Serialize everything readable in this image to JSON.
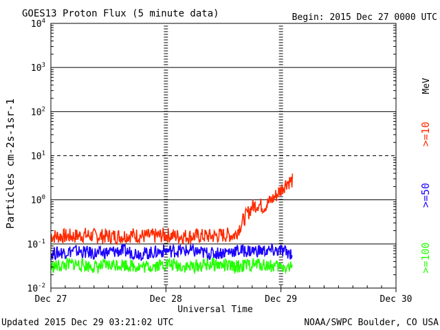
{
  "chart_data": {
    "type": "line",
    "title": "GOES13 Proton Flux (5 minute data)",
    "begin_label": "Begin: 2015 Dec 27 0000 UTC",
    "ylabel": "Particles cm-2s-1sr-1",
    "xlabel": "Universal Time",
    "y_scale": "log",
    "ylim": [
      0.01,
      10000
    ],
    "y_ticks": [
      {
        "base": "10",
        "exp": "4",
        "value": 10000
      },
      {
        "base": "10",
        "exp": "3",
        "value": 1000
      },
      {
        "base": "10",
        "exp": "2",
        "value": 100
      },
      {
        "base": "10",
        "exp": "1",
        "value": 10
      },
      {
        "base": "10",
        "exp": "0",
        "value": 1
      },
      {
        "base": "10",
        "exp": "-1",
        "value": 0.1
      },
      {
        "base": "10",
        "exp": "-2",
        "value": 0.01
      }
    ],
    "xlim": [
      0,
      3
    ],
    "x_ticks": [
      {
        "label": "Dec 27",
        "value": 0
      },
      {
        "label": "Dec 28",
        "value": 1
      },
      {
        "label": "Dec 29",
        "value": 2
      },
      {
        "label": "Dec 30",
        "value": 3
      }
    ],
    "threshold_line": 10,
    "unit_label": "MeV",
    "series": [
      {
        "name": ">=10",
        "color": "#ff2a00",
        "x": [
          0.0,
          0.1,
          0.2,
          0.3,
          0.4,
          0.5,
          0.6,
          0.7,
          0.8,
          0.9,
          1.0,
          1.1,
          1.2,
          1.3,
          1.4,
          1.5,
          1.6,
          1.7,
          1.75,
          1.8,
          1.85,
          1.9,
          1.95,
          2.0,
          2.05,
          2.1
        ],
        "values": [
          0.15,
          0.15,
          0.15,
          0.16,
          0.15,
          0.15,
          0.15,
          0.16,
          0.15,
          0.15,
          0.16,
          0.15,
          0.15,
          0.15,
          0.15,
          0.16,
          0.16,
          0.45,
          0.7,
          0.8,
          0.7,
          0.9,
          1.2,
          1.7,
          2.5,
          2.7
        ]
      },
      {
        "name": ">=50",
        "color": "#1a00ff",
        "x": [
          0.0,
          0.2,
          0.4,
          0.6,
          0.8,
          1.0,
          1.2,
          1.4,
          1.6,
          1.8,
          2.0,
          2.1
        ],
        "values": [
          0.06,
          0.07,
          0.06,
          0.07,
          0.06,
          0.07,
          0.07,
          0.06,
          0.07,
          0.07,
          0.07,
          0.06
        ]
      },
      {
        "name": ">=100",
        "color": "#22ff00",
        "x": [
          0.0,
          0.2,
          0.4,
          0.6,
          0.8,
          1.0,
          1.2,
          1.4,
          1.6,
          1.8,
          2.0,
          2.1
        ],
        "values": [
          0.03,
          0.035,
          0.03,
          0.035,
          0.03,
          0.035,
          0.03,
          0.035,
          0.03,
          0.035,
          0.03,
          0.03
        ]
      }
    ]
  },
  "footer": {
    "updated": "Updated 2015 Dec 29 03:21:02 UTC",
    "credit": "NOAA/SWPC Boulder, CO USA"
  }
}
